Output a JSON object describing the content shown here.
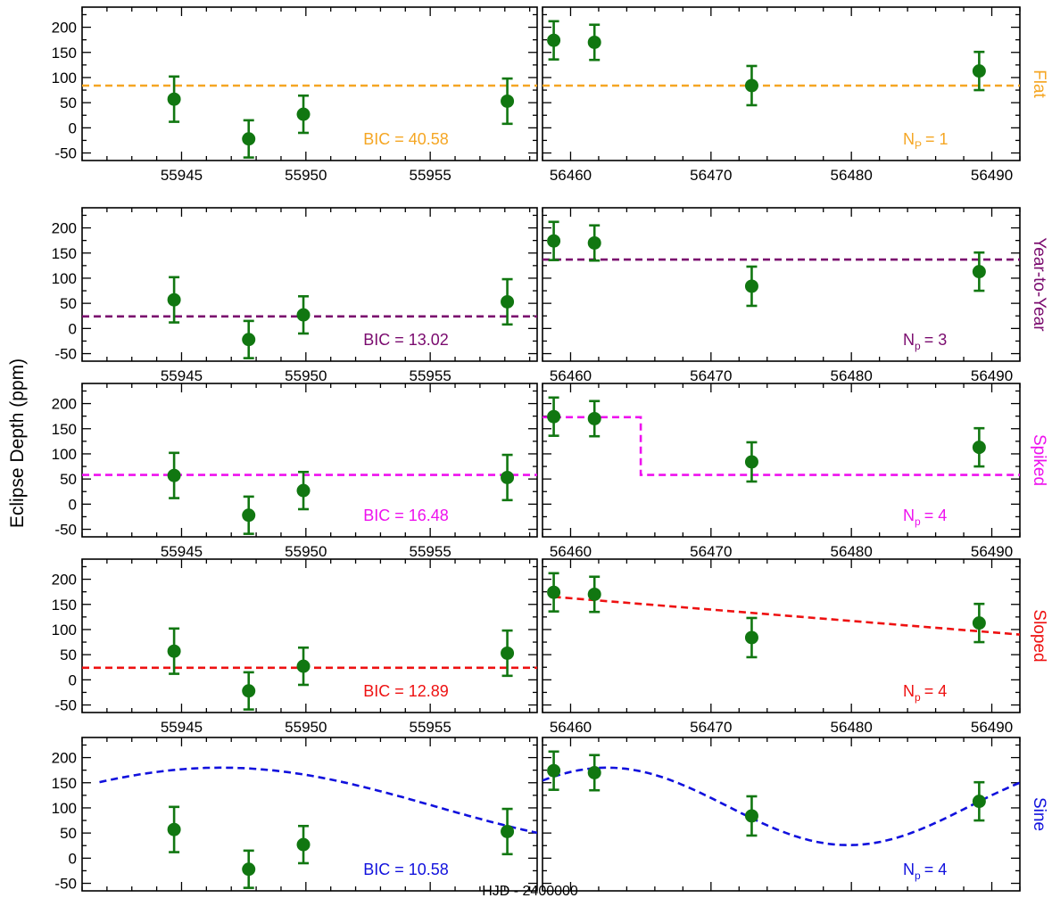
{
  "figure": {
    "ylabel": "Eclipse Depth (ppm)",
    "xlabel": "HJD - 2400000",
    "point_color": "#117711",
    "frame_color": "#000000"
  },
  "chart_data": {
    "type": "scatter",
    "title": "",
    "ylabel": "Eclipse Depth (ppm)",
    "xlabel": "HJD - 2400000",
    "ylim": [
      -65,
      240
    ],
    "yticks": [
      -50,
      0,
      50,
      100,
      150,
      200
    ],
    "panels_left": {
      "xlim": [
        55941,
        55959.3
      ],
      "xticks": [
        55945,
        55950,
        55955
      ],
      "points": [
        {
          "x": 55944.7,
          "y": 57,
          "err_lo": 45,
          "err_hi": 45
        },
        {
          "x": 55947.7,
          "y": -22,
          "err_lo": 37,
          "err_hi": 37
        },
        {
          "x": 55949.9,
          "y": 27,
          "err_lo": 37,
          "err_hi": 37
        },
        {
          "x": 55958.1,
          "y": 53,
          "err_lo": 45,
          "err_hi": 45
        }
      ]
    },
    "panels_right": {
      "xlim": [
        56458,
        56492
      ],
      "xticks": [
        56460,
        56470,
        56480,
        56490
      ],
      "points": [
        {
          "x": 56458.8,
          "y": 174,
          "err_lo": 38,
          "err_hi": 38
        },
        {
          "x": 56461.7,
          "y": 170,
          "err_lo": 35,
          "err_hi": 35
        },
        {
          "x": 56472.9,
          "y": 84,
          "err_lo": 39,
          "err_hi": 39
        },
        {
          "x": 56489.1,
          "y": 113,
          "err_lo": 38,
          "err_hi": 38
        }
      ]
    },
    "models": [
      {
        "name": "Flat",
        "color": "#f5a623",
        "bic_label": "BIC = 40.58",
        "np_base": "N",
        "np_sub": "P",
        "np_value": "= 1",
        "left": [
          [
            55941,
            84
          ],
          [
            55959.3,
            84
          ]
        ],
        "right": [
          [
            56458,
            84
          ],
          [
            56492,
            84
          ]
        ]
      },
      {
        "name": "Year-to-Year",
        "color": "#7a0a6e",
        "bic_label": "BIC = 13.02",
        "np_base": "N",
        "np_sub": "p",
        "np_value": "= 3",
        "left": [
          [
            55941,
            24
          ],
          [
            55959.3,
            24
          ]
        ],
        "right": [
          [
            56458,
            137
          ],
          [
            56492,
            137
          ]
        ]
      },
      {
        "name": "Spiked",
        "color": "#ee11ee",
        "bic_label": "BIC = 16.48",
        "np_base": "N",
        "np_sub": "p",
        "np_value": "= 4",
        "left": [
          [
            55941,
            58
          ],
          [
            55959.3,
            58
          ]
        ],
        "right": [
          [
            56458,
            173
          ],
          [
            56465,
            173
          ],
          [
            56465,
            58
          ],
          [
            56492,
            58
          ]
        ]
      },
      {
        "name": "Sloped",
        "color": "#ee1111",
        "bic_label": "BIC = 12.89",
        "np_base": "N",
        "np_sub": "p",
        "np_value": "= 4",
        "left": [
          [
            55941,
            24
          ],
          [
            55959.3,
            24
          ]
        ],
        "right": [
          [
            56458.8,
            165
          ],
          [
            56492,
            90
          ]
        ]
      },
      {
        "name": "Sine",
        "color": "#1111dd",
        "bic_label": "BIC = 10.58",
        "np_base": "N",
        "np_sub": "p",
        "np_value": "= 4",
        "sine": {
          "mean": 103,
          "amplitude": 77,
          "period": 34.4,
          "peak_hjd": 56462.6
        },
        "left_range": [
          55941.7,
          55959.3
        ],
        "right_range": [
          56458,
          56492
        ]
      }
    ]
  }
}
